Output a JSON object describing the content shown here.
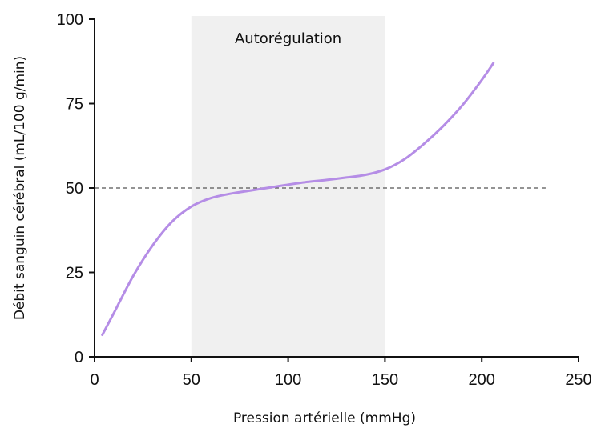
{
  "chart_data": {
    "type": "line",
    "xlabel": "Pression artérielle (mmHg)",
    "ylabel": "Débit sanguin cérébral (mL/100 g/min)",
    "xlim": [
      0,
      250
    ],
    "ylim": [
      0,
      100
    ],
    "x_ticks": [
      "0",
      "50",
      "100",
      "150",
      "200",
      "250"
    ],
    "y_ticks": [
      "0",
      "25",
      "50",
      "75",
      "100"
    ],
    "grid": false,
    "shaded_region": {
      "x_start": 50,
      "x_end": 150,
      "label": "Autorégulation",
      "color": "#f0f0f0"
    },
    "reference_line": {
      "y": 50,
      "x_start": 0,
      "x_end": 233,
      "style": "dashed",
      "color": "#555555"
    },
    "series": [
      {
        "color": "#b58de6",
        "x": [
          4,
          10,
          20,
          30,
          40,
          50,
          60,
          70,
          80,
          90,
          100,
          110,
          120,
          130,
          140,
          150,
          160,
          170,
          180,
          190,
          200,
          206
        ],
        "y": [
          6.5,
          13,
          24,
          33,
          40,
          44.5,
          47,
          48.3,
          49.2,
          50.1,
          51,
          51.8,
          52.4,
          53.1,
          53.9,
          55.5,
          58.5,
          63,
          68.3,
          74.5,
          82,
          87
        ]
      }
    ]
  }
}
